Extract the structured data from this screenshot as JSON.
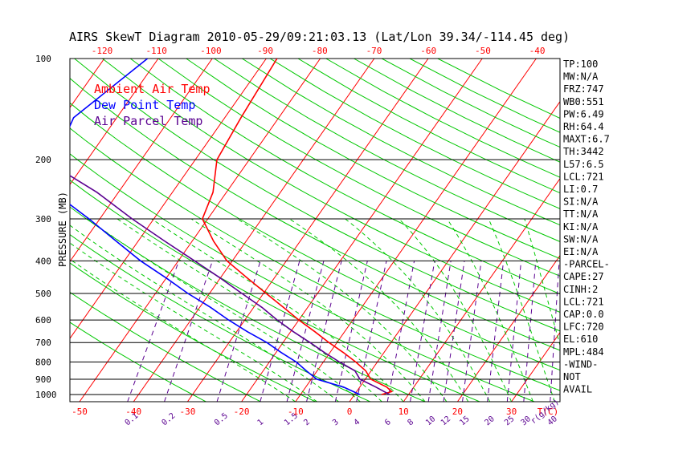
{
  "chart_data": {
    "type": "line",
    "title": "AIRS SkewT Diagram 2010-05-29/09:21:03.13 (Lat/Lon 39.34/-114.45 deg)",
    "ylabel": "PRESSURE (MB)",
    "xlabel": "T(C)",
    "mixing_ratio_unit": "r(g/kg)",
    "ylim": [
      1050,
      100
    ],
    "y_scale": "log",
    "pressure_ticks": [
      "100",
      "200",
      "300",
      "400",
      "500",
      "600",
      "700",
      "800",
      "900",
      "1000"
    ],
    "bottom_temp_ticks": [
      "-50",
      "-40",
      "-30",
      "-20",
      "-10",
      "0",
      "10",
      "20",
      "30"
    ],
    "top_temp_ticks": [
      "-120",
      "-110",
      "-100",
      "-90",
      "-80",
      "-70",
      "-60",
      "-50",
      "-40"
    ],
    "mixing_ratio_labels": [
      "0.1",
      "0.2",
      "0.5",
      "1",
      "1.5",
      "2",
      "3",
      "4",
      "6",
      "8",
      "10",
      "12",
      "15",
      "20",
      "25",
      "30",
      "40"
    ],
    "grid": true,
    "legend": [
      {
        "name": "Ambient Air Temp",
        "color": "#ff0000"
      },
      {
        "name": "Dew Point Temp",
        "color": "#0000ff"
      },
      {
        "name": "Air Parcel Temp",
        "color": "#5a0090"
      }
    ],
    "series": [
      {
        "name": "Ambient Air Temp",
        "color": "#ff0000",
        "points": [
          [
            1000,
            5
          ],
          [
            980,
            6.5
          ],
          [
            950,
            5
          ],
          [
            900,
            1
          ],
          [
            850,
            -1
          ],
          [
            800,
            -4
          ],
          [
            750,
            -7.5
          ],
          [
            700,
            -11.5
          ],
          [
            650,
            -15.5
          ],
          [
            600,
            -20
          ],
          [
            550,
            -24.5
          ],
          [
            500,
            -29.5
          ],
          [
            450,
            -35
          ],
          [
            400,
            -41
          ],
          [
            350,
            -46
          ],
          [
            300,
            -51
          ],
          [
            250,
            -52.5
          ],
          [
            200,
            -56
          ],
          [
            150,
            -57
          ],
          [
            100,
            -58
          ]
        ]
      },
      {
        "name": "Dew Point Temp",
        "color": "#0000ff",
        "points": [
          [
            1000,
            1
          ],
          [
            950,
            -3
          ],
          [
            900,
            -9
          ],
          [
            850,
            -12
          ],
          [
            800,
            -15
          ],
          [
            750,
            -19
          ],
          [
            700,
            -23
          ],
          [
            650,
            -28
          ],
          [
            600,
            -33
          ],
          [
            550,
            -38
          ],
          [
            500,
            -44
          ],
          [
            450,
            -50
          ],
          [
            400,
            -57
          ],
          [
            350,
            -64
          ],
          [
            300,
            -72
          ],
          [
            250,
            -82
          ],
          [
            200,
            -86
          ],
          [
            150,
            -88
          ],
          [
            100,
            -82
          ]
        ]
      },
      {
        "name": "Air Parcel Temp",
        "color": "#5a0090",
        "points": [
          [
            1000,
            6.5
          ],
          [
            950,
            3
          ],
          [
            900,
            -1
          ],
          [
            850,
            -3
          ],
          [
            800,
            -7
          ],
          [
            750,
            -11
          ],
          [
            700,
            -15
          ],
          [
            650,
            -19.5
          ],
          [
            600,
            -24
          ],
          [
            550,
            -28.5
          ],
          [
            500,
            -34
          ],
          [
            450,
            -40
          ],
          [
            400,
            -47
          ],
          [
            350,
            -55
          ],
          [
            300,
            -64
          ],
          [
            250,
            -74
          ],
          [
            200,
            -88
          ],
          [
            150,
            -104
          ],
          [
            100,
            -120
          ]
        ]
      }
    ]
  },
  "indices": [
    "TP:100",
    "MW:N/A",
    "FRZ:747",
    "WB0:551",
    "PW:6.49",
    "RH:64.4",
    "MAXT:6.7",
    "TH:3442",
    "L57:6.5",
    "LCL:721",
    "LI:0.7",
    "SI:N/A",
    "TT:N/A",
    "KI:N/A",
    "SW:N/A",
    "EI:N/A",
    "-PARCEL-",
    "CAPE:27",
    "CINH:2",
    "LCL:721",
    "CAP:0.0",
    "LFC:720",
    "EL:610",
    "MPL:484",
    "-WIND-",
    "NOT",
    "AVAIL"
  ],
  "colors": {
    "isotherm": "#ff0000",
    "dry_adiabat": "#00c800",
    "moist_adiabat": "#00c800",
    "mixing_ratio": "#5a0090",
    "isobar": "#000000",
    "text": "#000000"
  }
}
